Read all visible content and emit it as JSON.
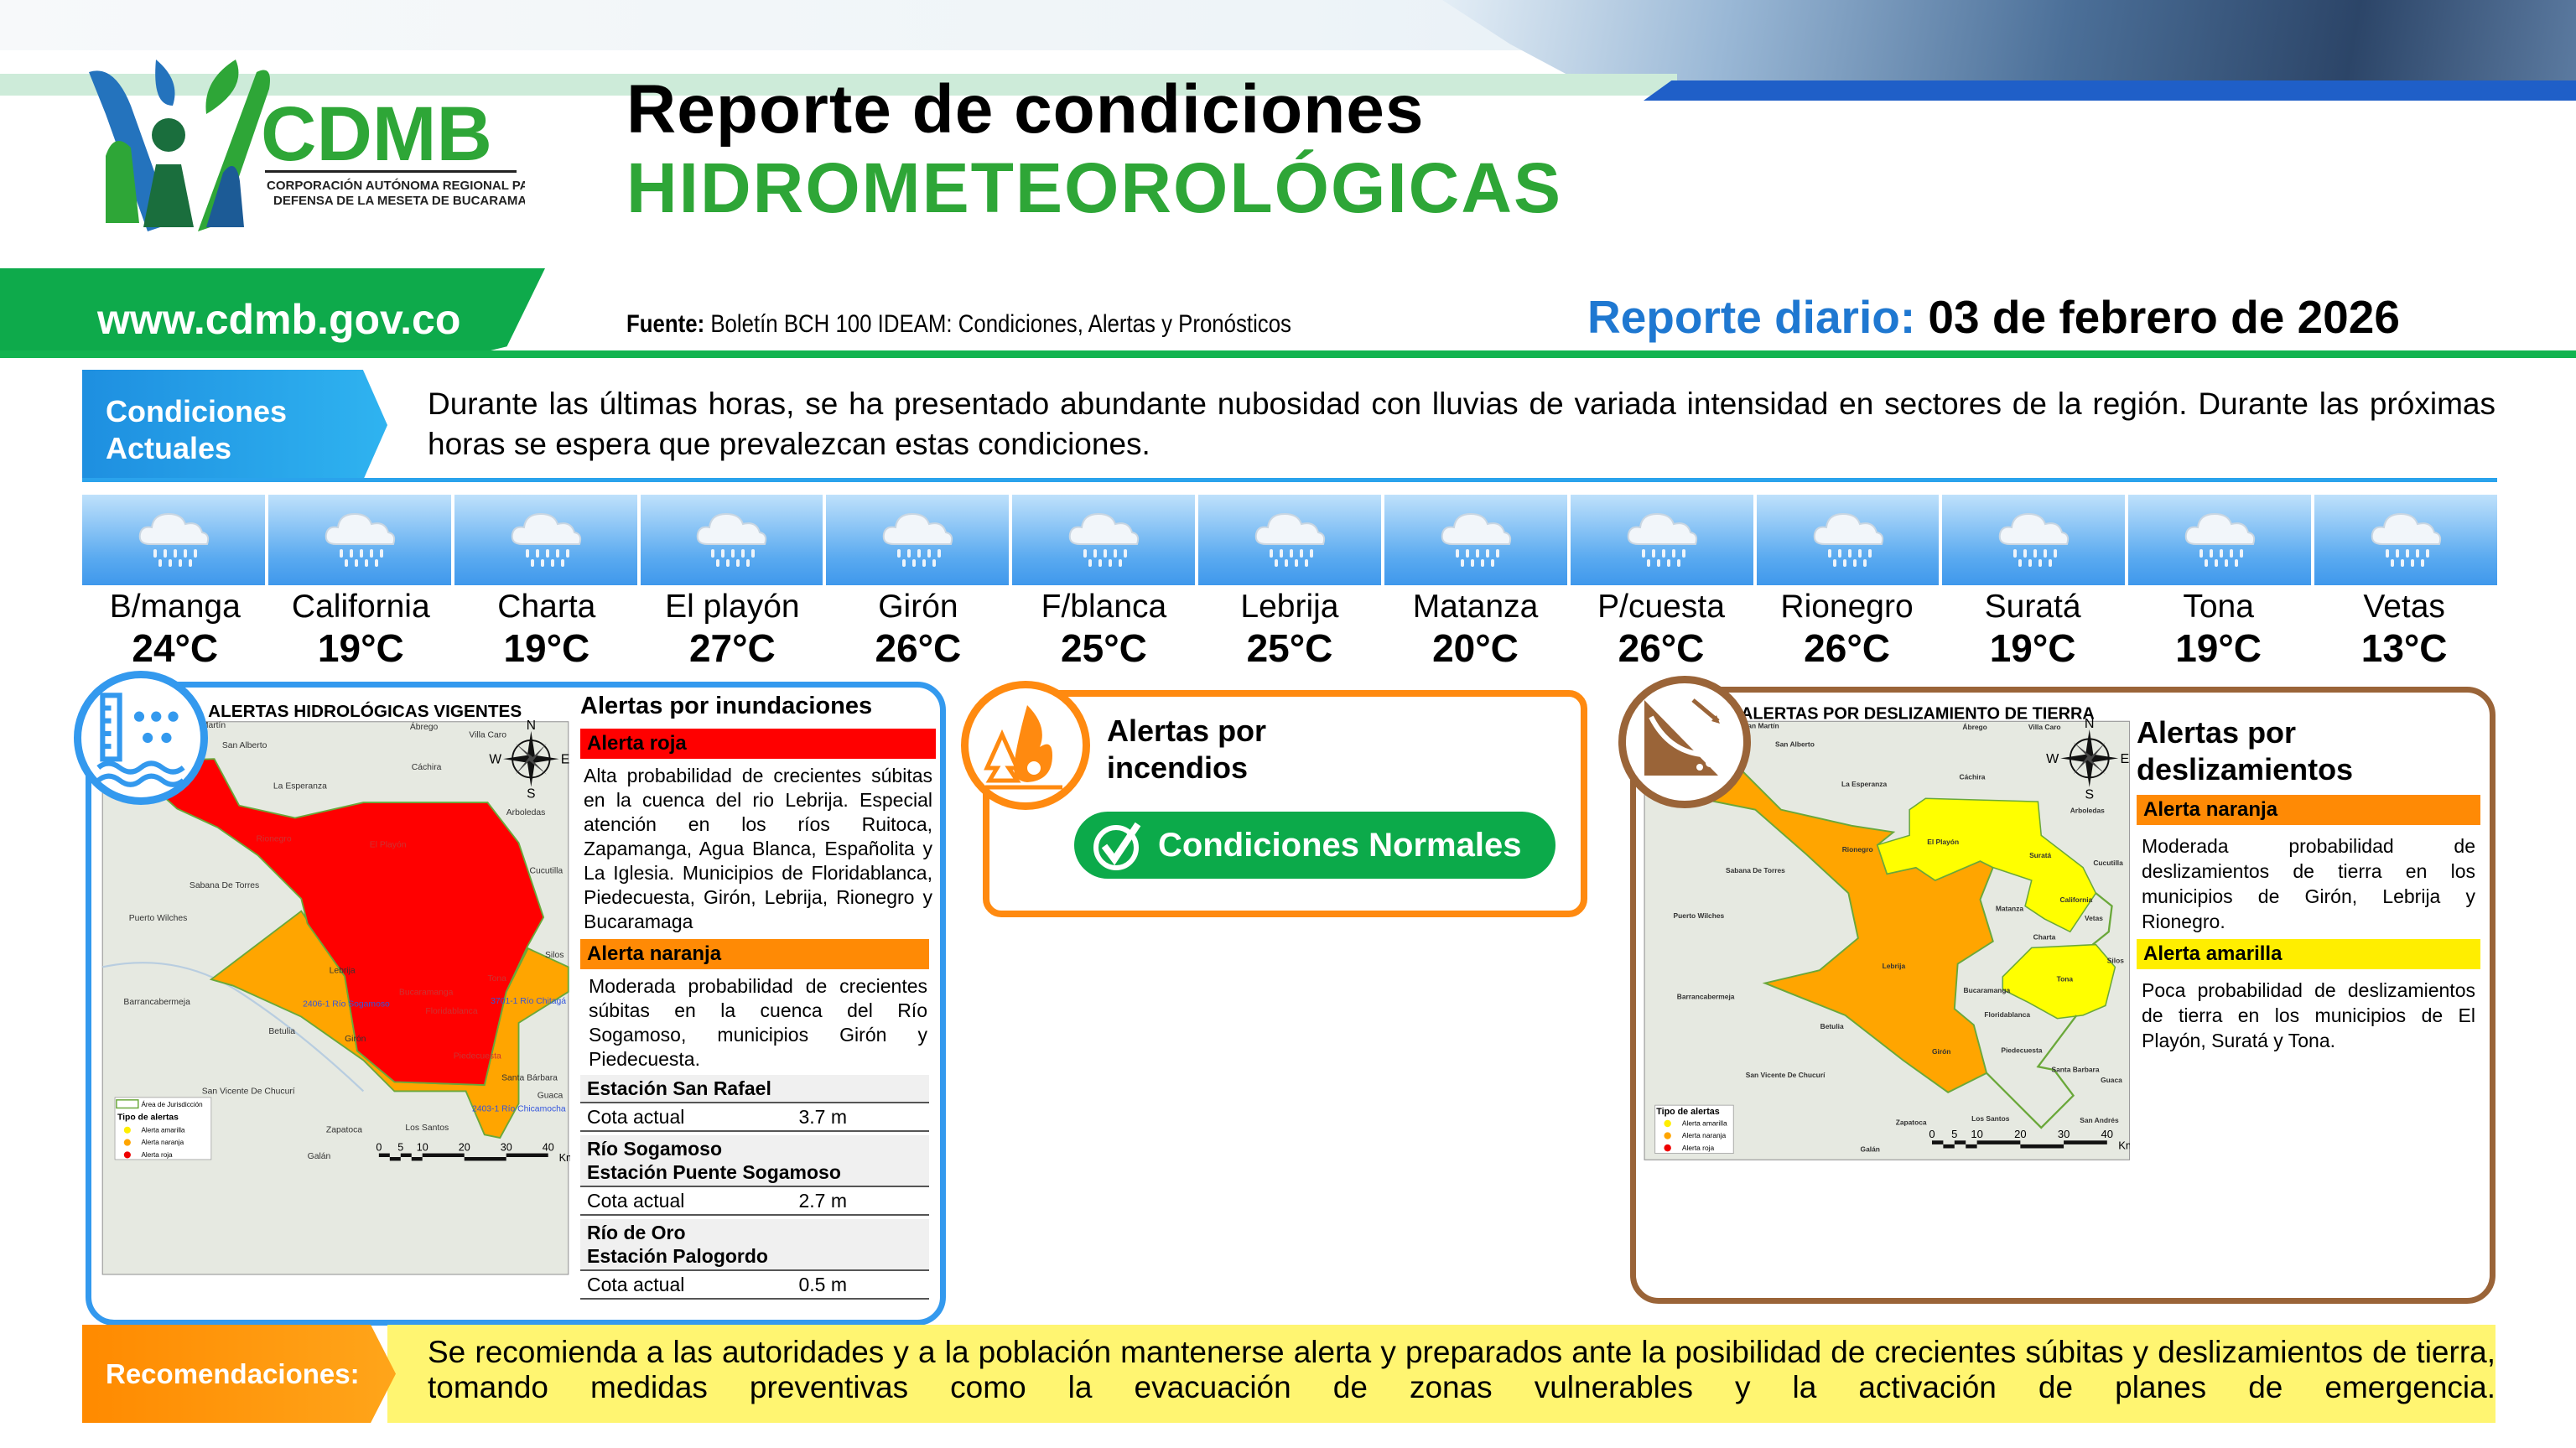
{
  "header": {
    "logo": {
      "name": "CDMB",
      "subtitle_1": "CORPORACIÓN AUTÓNOMA REGIONAL PARA LA",
      "subtitle_2": "DEFENSA DE LA MESETA DE BUCARAMANGA"
    },
    "title_line1": "Reporte de condiciones",
    "title_line2": "HIDROMETEOROLÓGICAS",
    "website": "www.cdmb.gov.co",
    "source_label": "Fuente:",
    "source_text": " Boletín BCH 100 IDEAM: Condiciones, Alertas y Pronósticos",
    "report_label": "Reporte diario:",
    "report_date": " 03 de febrero de 2026"
  },
  "conditions": {
    "label_line1": "Condiciones",
    "label_line2": "Actuales",
    "text": "Durante las últimas horas, se ha presentado abundante nubosidad con lluvias de variada intensidad en sectores de la región. Durante las próximas horas se espera que prevalezcan estas condiciones."
  },
  "weather": [
    {
      "city": "B/manga",
      "temp": "24°C",
      "icon": "rain-cloud-icon"
    },
    {
      "city": "California",
      "temp": "19°C",
      "icon": "rain-cloud-icon"
    },
    {
      "city": "Charta",
      "temp": "19°C",
      "icon": "rain-cloud-icon"
    },
    {
      "city": "El playón",
      "temp": "27°C",
      "icon": "rain-cloud-icon"
    },
    {
      "city": "Girón",
      "temp": "26°C",
      "icon": "rain-cloud-icon"
    },
    {
      "city": "F/blanca",
      "temp": "25°C",
      "icon": "rain-cloud-icon"
    },
    {
      "city": "Lebrija",
      "temp": "25°C",
      "icon": "rain-cloud-icon"
    },
    {
      "city": "Matanza",
      "temp": "20°C",
      "icon": "rain-cloud-icon"
    },
    {
      "city": "P/cuesta",
      "temp": "26°C",
      "icon": "rain-cloud-icon"
    },
    {
      "city": "Rionegro",
      "temp": "26°C",
      "icon": "rain-cloud-icon"
    },
    {
      "city": "Suratá",
      "temp": "19°C",
      "icon": "rain-cloud-icon"
    },
    {
      "city": "Tona",
      "temp": "19°C",
      "icon": "rain-cloud-icon"
    },
    {
      "city": "Vetas",
      "temp": "13°C",
      "icon": "rain-cloud-icon"
    }
  ],
  "flood": {
    "title": "Alertas por inundaciones",
    "map_title": "ALERTAS HIDROLÓGICAS VIGENTES",
    "map_labels": [
      "San Martín",
      "San Alberto",
      "Ábrego",
      "Villa Caro",
      "Cáchira",
      "La Esperanza",
      "Arboledas",
      "Sabana De Torres",
      "Puerto Wilches",
      "Cucutilla",
      "Barrancabermeja",
      "Betulia",
      "Silos",
      "San Vicente De Chucurí",
      "Zapatoca",
      "Los Santos",
      "Galán",
      "Santa Bárbara",
      "Guaca",
      "Lebrija",
      "Girón",
      "El Playón",
      "Rionegro",
      "Bucaramanga",
      "Floridablanca",
      "Piedecuesta",
      "Tona",
      "2406-1 Río Sogamoso",
      "3701-1 Río Chitagá",
      "2403-1 Río Chicamocha"
    ],
    "legend": {
      "area": "Área de Jurisdicción",
      "title": "Tipo de alertas",
      "items": [
        "Alerta amarilla",
        "Alerta naranja",
        "Alerta roja"
      ]
    },
    "red": {
      "label": "Alerta roja",
      "text": "Alta probabilidad de crecientes súbitas en la cuenca del rio Lebrija. Especial atención en los ríos Ruitoca, Zapamanga, Agua Blanca, Españolita y La Iglesia. Municipios de Floridablanca, Piedecuesta, Girón, Lebrija, Rionegro y Bucaramaga"
    },
    "orange": {
      "label": "Alerta naranja",
      "text": "Moderada probabilidad de crecientes súbitas en la cuenca del Río Sogamoso, municipios Girón y Piedecuesta."
    },
    "stations": [
      {
        "name_line1": "Estación San Rafael",
        "name_line2": "",
        "cota_label": "Cota actual",
        "cota": "3.7 m"
      },
      {
        "name_line1": "Río Sogamoso",
        "name_line2": "Estación Puente Sogamoso",
        "cota_label": "Cota actual",
        "cota": "2.7 m"
      },
      {
        "name_line1": "Río de Oro",
        "name_line2": "Estación Palogordo",
        "cota_label": "Cota actual",
        "cota": "0.5 m"
      }
    ]
  },
  "fire": {
    "title_line1": "Alertas por",
    "title_line2": "incendios",
    "status": "Condiciones Normales"
  },
  "landslide": {
    "title_line1": "Alertas por",
    "title_line2": "deslizamientos",
    "map_title": "ALERTAS POR DESLIZAMIENTO DE TIERRA",
    "map_labels": [
      "San Martín",
      "San Alberto",
      "Ábrego",
      "Villa Caro",
      "Cáchira",
      "La Esperanza",
      "Arboledas",
      "Rionegro",
      "El Playón",
      "Suratá",
      "Cucutilla",
      "Sabana De Torres",
      "Puerto Wilches",
      "Matanza",
      "California",
      "Vetas",
      "Charta",
      "Lebrija",
      "Tona",
      "Silos",
      "Barrancabermeja",
      "Bucaramanga",
      "Floridablanca",
      "Betulia",
      "Girón",
      "Piedecuesta",
      "San Vicente De Chucurí",
      "Santa Barbara",
      "Guaca",
      "Zapatoca",
      "Los Santos",
      "Galán",
      "San Andrés"
    ],
    "legend": {
      "title": "Tipo de alertas",
      "items": [
        "Alerta amarilla",
        "Alerta naranja",
        "Alerta roja"
      ]
    },
    "orange": {
      "label": "Alerta naranja",
      "text": "Moderada probabilidad de deslizamientos de tierra en los municipios de Girón, Lebrija y Rionegro."
    },
    "yellow": {
      "label": "Alerta amarilla",
      "text": "Poca probabilidad de deslizamientos de tierra en los municipios de El Playón, Suratá y Tona."
    }
  },
  "map_common": {
    "compass": [
      "N",
      "S",
      "W",
      "E"
    ],
    "scale": [
      "0",
      "5",
      "10",
      "20",
      "30",
      "40",
      "Km"
    ]
  },
  "recommendations": {
    "label": "Recomendaciones:",
    "text": "Se recomienda a las autoridades y a la población mantenerse alerta y preparados ante la posibilidad de crecientes súbitas y deslizamientos de tierra, tomando medidas preventivas como la evacuación de zonas vulnerables y la activación de planes de emergencia."
  },
  "colors": {
    "green": "#0eaa4b",
    "blue": "#1f78d1",
    "alert_red": "#ff0000",
    "alert_orange": "#ff8a05",
    "alert_yellow": "#ffee00",
    "landslide_brown": "#9a6438",
    "fire_orange": "#ff8a10"
  }
}
